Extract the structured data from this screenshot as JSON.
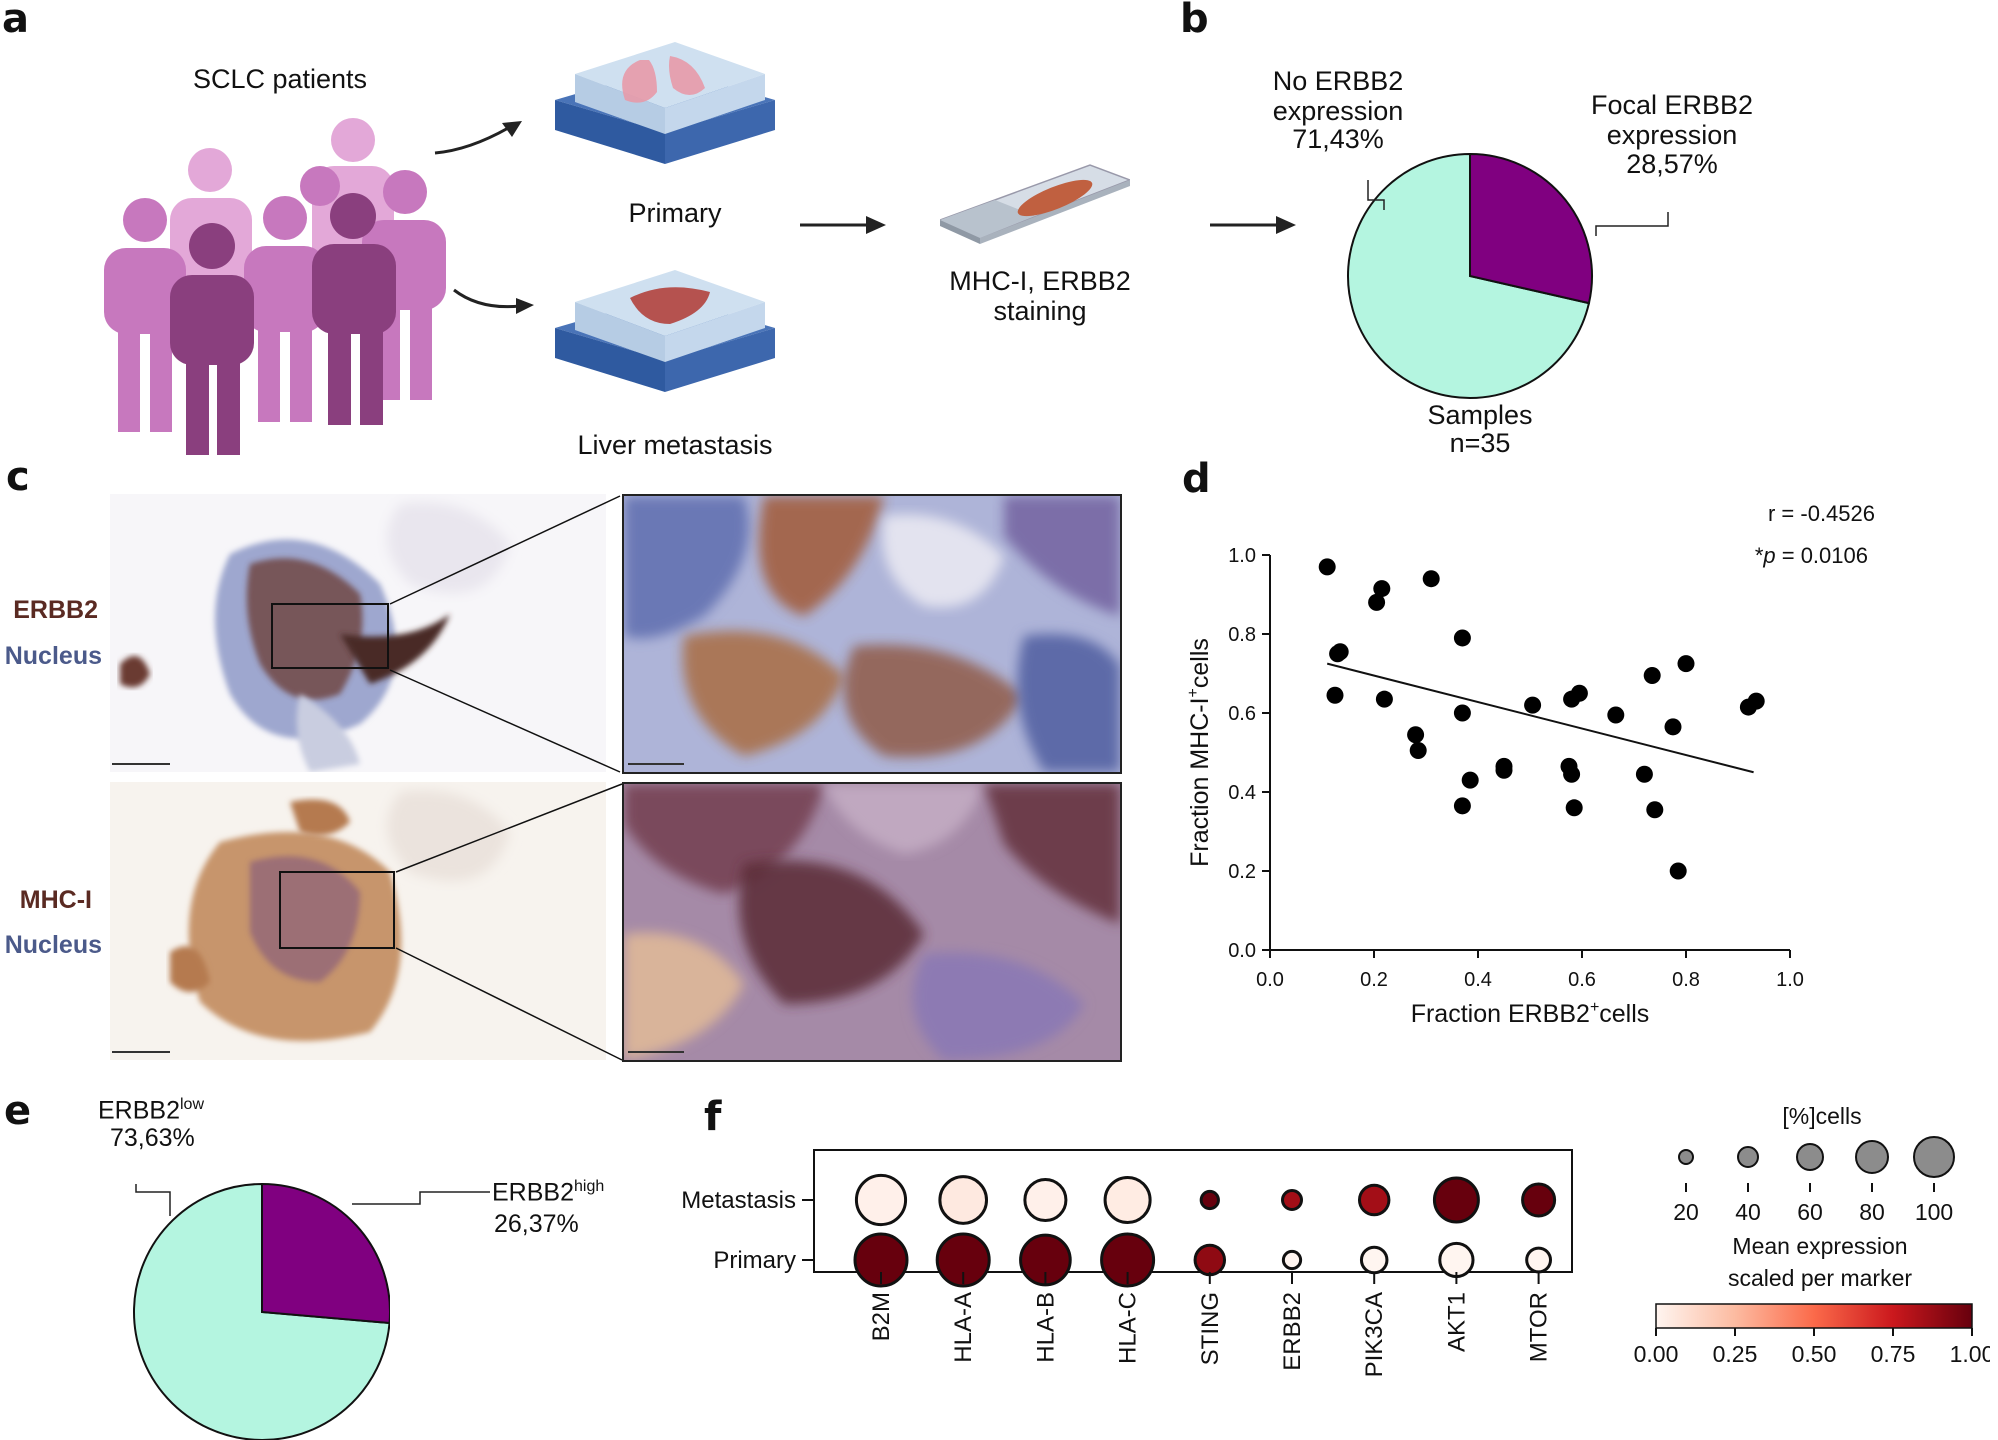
{
  "panels": {
    "a": "a",
    "b": "b",
    "c": "c",
    "d": "d",
    "e": "e",
    "f": "f"
  },
  "panel_a": {
    "patients_label": "SCLC patients",
    "primary_label": "Primary",
    "liver_label": "Liver metastasis",
    "staining_line1": "MHC-I, ERBB2",
    "staining_line2": "staining"
  },
  "panel_c": {
    "row1_marker": "ERBB2",
    "row1_counter": "Nucleus",
    "row2_marker": "MHC-I",
    "row2_counter": "Nucleus",
    "colors": {
      "erbb2": "#5a2a22",
      "mhc": "#5a2a22",
      "nucleus": "#4b5a8a"
    }
  },
  "colors": {
    "teal": "#b4f5e0",
    "purple": "#800080",
    "dark_red": "#67000d"
  },
  "chart_data": [
    {
      "panel": "b",
      "type": "pie",
      "slices": [
        {
          "label_lines": [
            "No ERBB2",
            "expression",
            "71,43%"
          ],
          "value": 71.43,
          "color": "#b4f5e0"
        },
        {
          "label_lines": [
            "Focal ERBB2",
            "expression",
            "28,57%"
          ],
          "value": 28.57,
          "color": "#800080"
        }
      ],
      "caption_lines": [
        "Samples",
        "n=35"
      ]
    },
    {
      "panel": "d",
      "type": "scatter",
      "xlabel": "Fraction ERBB2",
      "xlabel_sup": "+",
      "xlabel_suffix": "cells",
      "ylabel": "Fraction MHC-I",
      "ylabel_sup": "+",
      "ylabel_suffix": "cells",
      "xlim": [
        0,
        1
      ],
      "ylim": [
        0,
        1
      ],
      "xticks": [
        "0.0",
        "0.2",
        "0.4",
        "0.6",
        "0.8",
        "1.0"
      ],
      "yticks": [
        "0.0",
        "0.2",
        "0.4",
        "0.6",
        "0.8",
        "1.0"
      ],
      "annotation_r": "r = -0.4526",
      "annotation_p_prefix": "*",
      "annotation_p_italic": "p",
      "annotation_p_value": " = 0.0106",
      "fit_line": {
        "x": [
          0.11,
          0.93
        ],
        "y": [
          0.725,
          0.45
        ]
      },
      "points": [
        [
          0.11,
          0.97
        ],
        [
          0.13,
          0.75
        ],
        [
          0.135,
          0.755
        ],
        [
          0.125,
          0.645
        ],
        [
          0.205,
          0.88
        ],
        [
          0.215,
          0.915
        ],
        [
          0.22,
          0.635
        ],
        [
          0.28,
          0.545
        ],
        [
          0.285,
          0.505
        ],
        [
          0.31,
          0.94
        ],
        [
          0.37,
          0.79
        ],
        [
          0.37,
          0.6
        ],
        [
          0.37,
          0.365
        ],
        [
          0.385,
          0.43
        ],
        [
          0.45,
          0.455
        ],
        [
          0.45,
          0.465
        ],
        [
          0.505,
          0.62
        ],
        [
          0.575,
          0.465
        ],
        [
          0.58,
          0.635
        ],
        [
          0.58,
          0.445
        ],
        [
          0.585,
          0.36
        ],
        [
          0.595,
          0.65
        ],
        [
          0.665,
          0.595
        ],
        [
          0.72,
          0.445
        ],
        [
          0.735,
          0.695
        ],
        [
          0.74,
          0.355
        ],
        [
          0.775,
          0.565
        ],
        [
          0.785,
          0.2
        ],
        [
          0.8,
          0.725
        ],
        [
          0.92,
          0.615
        ],
        [
          0.935,
          0.63
        ]
      ]
    },
    {
      "panel": "e",
      "type": "pie",
      "slices": [
        {
          "label": "ERBB2",
          "label_sup": "low",
          "pct": "73,63%",
          "value": 73.63,
          "color": "#b4f5e0"
        },
        {
          "label": "ERBB2",
          "label_sup": "high",
          "pct": "26,37%",
          "value": 26.37,
          "color": "#800080"
        }
      ]
    },
    {
      "panel": "f",
      "type": "dot",
      "rows": [
        "Metastasis",
        "Primary"
      ],
      "columns": [
        "B2M",
        "HLA-A",
        "HLA-B",
        "HLA-C",
        "STING",
        "ERBB2",
        "PIK3CA",
        "AKT1",
        "MTOR"
      ],
      "mean_expression": [
        [
          0.02,
          0.05,
          0.02,
          0.04,
          1.0,
          0.85,
          0.85,
          1.0,
          1.0
        ],
        [
          1.0,
          1.0,
          1.0,
          1.0,
          0.9,
          0.0,
          0.0,
          0.0,
          0.0
        ]
      ],
      "pct_cells": [
        [
          88,
          78,
          58,
          72,
          6,
          8,
          26,
          68,
          32
        ],
        [
          100,
          100,
          90,
          100,
          26,
          6,
          18,
          35,
          15
        ]
      ],
      "size_legend_title": "[%]cells",
      "size_legend_values": [
        "20",
        "40",
        "60",
        "80",
        "100"
      ],
      "color_legend_title_lines": [
        "Mean expression",
        "scaled per marker"
      ],
      "color_legend_ticks": [
        "0.00",
        "0.25",
        "0.50",
        "0.75",
        "1.00"
      ]
    }
  ]
}
